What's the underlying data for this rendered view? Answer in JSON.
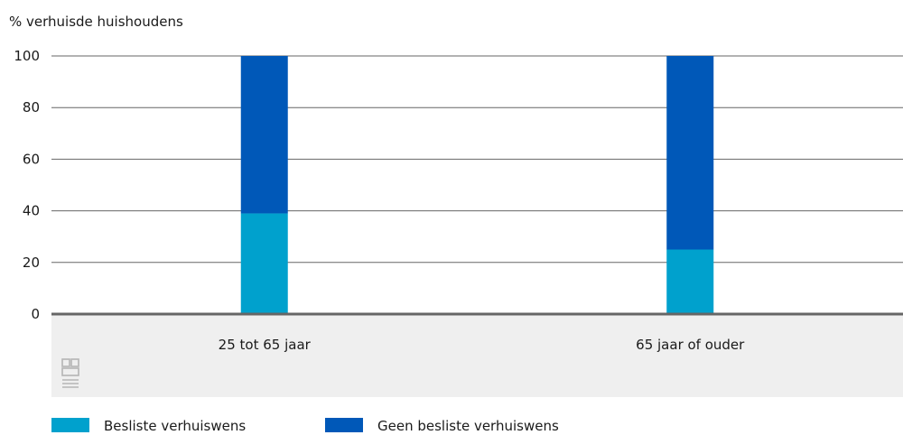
{
  "chart_data": {
    "type": "bar",
    "stacked": true,
    "ylabel": "% verhuisde huishoudens",
    "categories": [
      "25 tot 65 jaar",
      "65 jaar of ouder"
    ],
    "ylim": [
      0,
      100
    ],
    "yticks": [
      0,
      20,
      40,
      60,
      80,
      100
    ],
    "grid": true,
    "legend_position": "bottom-left",
    "series": [
      {
        "name": "Besliste verhuiswens",
        "values": [
          39,
          25
        ],
        "color": "#00a1cd"
      },
      {
        "name": "Geen besliste verhuiswens",
        "values": [
          61,
          75
        ],
        "color": "#0058b8"
      }
    ]
  },
  "logo": {
    "text": "cbs",
    "icon": "cbs-logo-icon"
  },
  "colors": {
    "axis": "#666666",
    "grid": "#666666",
    "category_band": "#efefef",
    "logo": "#b5b5b5"
  }
}
